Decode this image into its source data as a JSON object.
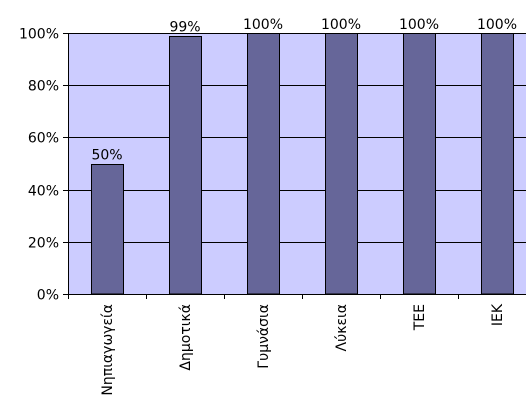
{
  "chart_data": {
    "type": "bar",
    "categories": [
      "Νηπιαγωγεία",
      "Δημοτικά",
      "Γυμνάσια",
      "Λύκεια",
      "ΤΕΕ",
      "ΙΕΚ"
    ],
    "values": [
      50,
      99,
      100,
      100,
      100,
      100
    ],
    "data_labels": [
      "50%",
      "99%",
      "100%",
      "100%",
      "100%",
      "100%"
    ],
    "y_ticks": [
      0,
      20,
      40,
      60,
      80,
      100
    ],
    "y_tick_labels": [
      "0%",
      "20%",
      "40%",
      "60%",
      "80%",
      "100%"
    ],
    "ylim": [
      0,
      100
    ],
    "grid": true,
    "legend": "none",
    "colors": {
      "plot_background": "#ccccff",
      "bar_fill": "#666699",
      "bar_stroke": "#000000"
    }
  }
}
